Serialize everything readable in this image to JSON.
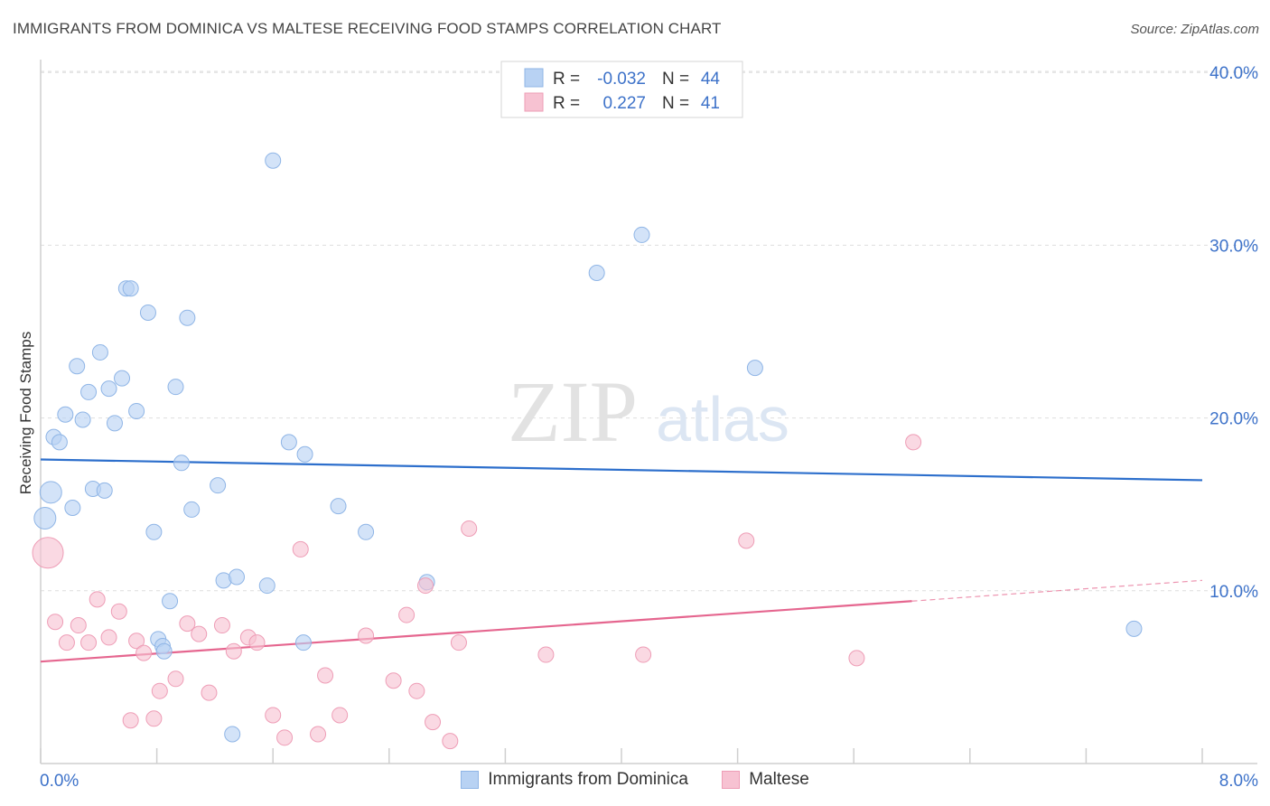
{
  "title": "IMMIGRANTS FROM DOMINICA VS MALTESE RECEIVING FOOD STAMPS CORRELATION CHART",
  "source": "Source: ZipAtlas.com",
  "watermark": {
    "zip": "ZIP",
    "atlas": "atlas"
  },
  "colors": {
    "blue_fill": "#b8d2f3",
    "blue_stroke": "#8fb5e6",
    "blue_line": "#2d6fcc",
    "pink_fill": "#f7c2d2",
    "pink_stroke": "#ee9db6",
    "pink_line": "#e5668f",
    "axis_text": "#3d72c9",
    "grid": "#dedede"
  },
  "legend": {
    "rows": [
      {
        "r_label": "R =",
        "r_value": "-0.032",
        "n_label": "N =",
        "n_value": "44"
      },
      {
        "r_label": "R =",
        "r_value": "0.227",
        "n_label": "N =",
        "n_value": "41"
      }
    ]
  },
  "chart_data": {
    "type": "scatter",
    "title": "IMMIGRANTS FROM DOMINICA VS MALTESE RECEIVING FOOD STAMPS CORRELATION CHART",
    "xlabel": "",
    "ylabel": "Receiving Food Stamps",
    "xlim": [
      0,
      8
    ],
    "ylim": [
      0,
      40
    ],
    "x_tick_labels": [
      "0.0%",
      "8.0%"
    ],
    "y_ticks": [
      10,
      20,
      30,
      40
    ],
    "y_tick_labels": [
      "10.0%",
      "20.0%",
      "30.0%",
      "40.0%"
    ],
    "legend_position": "top-center",
    "series": [
      {
        "name": "Immigrants from Dominica",
        "r": -0.032,
        "n": 44,
        "trend": {
          "x": [
            0,
            8
          ],
          "y": [
            17.6,
            16.4
          ]
        },
        "points": [
          [
            0.03,
            14.2
          ],
          [
            0.07,
            15.7
          ],
          [
            0.09,
            18.9
          ],
          [
            0.13,
            18.6
          ],
          [
            0.17,
            20.2
          ],
          [
            0.22,
            14.8
          ],
          [
            0.25,
            23.0
          ],
          [
            0.29,
            19.9
          ],
          [
            0.33,
            21.5
          ],
          [
            0.36,
            15.9
          ],
          [
            0.41,
            23.8
          ],
          [
            0.44,
            15.8
          ],
          [
            0.47,
            21.7
          ],
          [
            0.51,
            19.7
          ],
          [
            0.56,
            22.3
          ],
          [
            0.59,
            27.5
          ],
          [
            0.62,
            27.5
          ],
          [
            0.66,
            20.4
          ],
          [
            0.74,
            26.1
          ],
          [
            0.78,
            13.4
          ],
          [
            0.81,
            7.2
          ],
          [
            0.84,
            6.8
          ],
          [
            0.85,
            6.5
          ],
          [
            0.89,
            9.4
          ],
          [
            0.93,
            21.8
          ],
          [
            0.97,
            17.4
          ],
          [
            1.01,
            25.8
          ],
          [
            1.04,
            14.7
          ],
          [
            1.22,
            16.1
          ],
          [
            1.26,
            10.6
          ],
          [
            1.32,
            1.7
          ],
          [
            1.35,
            10.8
          ],
          [
            1.56,
            10.3
          ],
          [
            1.6,
            34.9
          ],
          [
            1.71,
            18.6
          ],
          [
            1.81,
            7.0
          ],
          [
            1.82,
            17.9
          ],
          [
            2.05,
            14.9
          ],
          [
            2.24,
            13.4
          ],
          [
            2.66,
            10.5
          ],
          [
            3.83,
            28.4
          ],
          [
            4.14,
            30.6
          ],
          [
            4.92,
            22.9
          ],
          [
            7.53,
            7.8
          ]
        ]
      },
      {
        "name": "Maltese",
        "r": 0.227,
        "n": 41,
        "trend": {
          "x": [
            0,
            6.0
          ],
          "y": [
            5.9,
            9.4
          ]
        },
        "trend_dashed": {
          "x": [
            6.0,
            8.0
          ],
          "y": [
            9.4,
            10.6
          ]
        },
        "points": [
          [
            0.05,
            12.2
          ],
          [
            0.1,
            8.2
          ],
          [
            0.18,
            7.0
          ],
          [
            0.26,
            8.0
          ],
          [
            0.33,
            7.0
          ],
          [
            0.39,
            9.5
          ],
          [
            0.47,
            7.3
          ],
          [
            0.54,
            8.8
          ],
          [
            0.62,
            2.5
          ],
          [
            0.66,
            7.1
          ],
          [
            0.71,
            6.4
          ],
          [
            0.78,
            2.6
          ],
          [
            0.82,
            4.2
          ],
          [
            0.93,
            4.9
          ],
          [
            1.01,
            8.1
          ],
          [
            1.09,
            7.5
          ],
          [
            1.16,
            4.1
          ],
          [
            1.25,
            8.0
          ],
          [
            1.33,
            6.5
          ],
          [
            1.43,
            7.3
          ],
          [
            1.49,
            7.0
          ],
          [
            1.6,
            2.8
          ],
          [
            1.68,
            1.5
          ],
          [
            1.79,
            12.4
          ],
          [
            1.91,
            1.7
          ],
          [
            1.96,
            5.1
          ],
          [
            2.06,
            2.8
          ],
          [
            2.24,
            7.4
          ],
          [
            2.43,
            4.8
          ],
          [
            2.52,
            8.6
          ],
          [
            2.59,
            4.2
          ],
          [
            2.65,
            10.3
          ],
          [
            2.7,
            2.4
          ],
          [
            2.82,
            1.3
          ],
          [
            2.88,
            7.0
          ],
          [
            2.95,
            13.6
          ],
          [
            4.15,
            6.3
          ],
          [
            4.86,
            12.9
          ],
          [
            5.62,
            6.1
          ],
          [
            6.01,
            18.6
          ],
          [
            3.48,
            6.3
          ]
        ]
      }
    ]
  }
}
